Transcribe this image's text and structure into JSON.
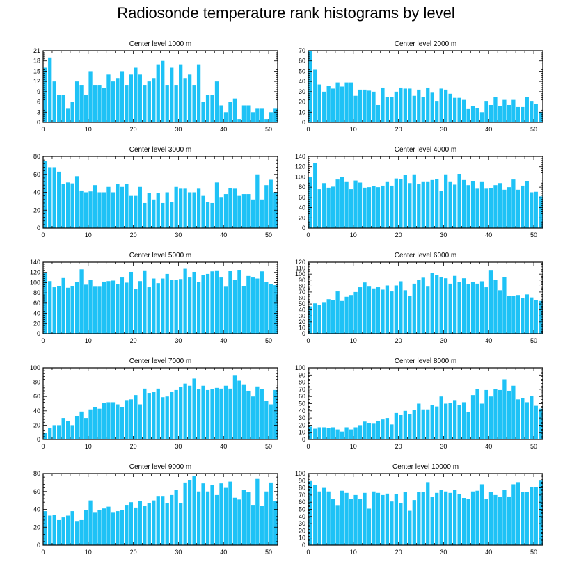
{
  "title": "Radiosonde temperature rank histograms by level",
  "bar_color": "#1ec2f6",
  "chart_data": [
    {
      "type": "bar",
      "title": "Center level 1000 m",
      "xlim": [
        0,
        52
      ],
      "ylim": [
        0,
        21
      ],
      "xticks": [
        0,
        10,
        20,
        30,
        40,
        50
      ],
      "yticks": [
        0,
        3,
        6,
        9,
        12,
        15,
        18,
        21
      ],
      "x": [
        0,
        1,
        2,
        3,
        4,
        5,
        6,
        7,
        8,
        9,
        10,
        11,
        12,
        13,
        14,
        15,
        16,
        17,
        18,
        19,
        20,
        21,
        22,
        23,
        24,
        25,
        26,
        27,
        28,
        29,
        30,
        31,
        32,
        33,
        34,
        35,
        36,
        37,
        38,
        39,
        40,
        41,
        42,
        43,
        44,
        45,
        46,
        47,
        48,
        49,
        50,
        51
      ],
      "values": [
        16,
        19,
        12,
        8,
        8,
        4,
        6,
        12,
        11,
        8,
        15,
        11,
        11,
        10,
        14,
        12,
        13,
        15,
        11,
        14,
        16,
        14,
        11,
        12,
        13,
        17,
        18,
        11,
        16,
        11,
        17,
        13,
        14,
        11,
        17,
        6,
        8,
        8,
        12,
        5,
        3,
        6,
        7,
        1,
        5,
        5,
        3,
        4,
        4,
        1,
        3,
        4
      ]
    },
    {
      "type": "bar",
      "title": "Center level 2000 m",
      "xlim": [
        0,
        52
      ],
      "ylim": [
        0,
        70
      ],
      "xticks": [
        0,
        10,
        20,
        30,
        40,
        50
      ],
      "yticks": [
        0,
        10,
        20,
        30,
        40,
        50,
        60,
        70
      ],
      "x": [
        0,
        1,
        2,
        3,
        4,
        5,
        6,
        7,
        8,
        9,
        10,
        11,
        12,
        13,
        14,
        15,
        16,
        17,
        18,
        19,
        20,
        21,
        22,
        23,
        24,
        25,
        26,
        27,
        28,
        29,
        30,
        31,
        32,
        33,
        34,
        35,
        36,
        37,
        38,
        39,
        40,
        41,
        42,
        43,
        44,
        45,
        46,
        47,
        48,
        49,
        50,
        51
      ],
      "values": [
        70,
        52,
        37,
        30,
        36,
        33,
        39,
        35,
        39,
        39,
        26,
        32,
        32,
        31,
        30,
        17,
        34,
        25,
        25,
        30,
        34,
        33,
        33,
        26,
        32,
        25,
        34,
        29,
        21,
        33,
        32,
        28,
        24,
        24,
        22,
        13,
        16,
        14,
        10,
        21,
        17,
        25,
        16,
        22,
        17,
        22,
        15,
        15,
        25,
        21,
        18,
        10
      ]
    },
    {
      "type": "bar",
      "title": "Center level 3000 m",
      "xlim": [
        0,
        52
      ],
      "ylim": [
        0,
        80
      ],
      "xticks": [
        0,
        10,
        20,
        30,
        40,
        50
      ],
      "yticks": [
        0,
        20,
        40,
        60,
        80
      ],
      "x": [
        0,
        1,
        2,
        3,
        4,
        5,
        6,
        7,
        8,
        9,
        10,
        11,
        12,
        13,
        14,
        15,
        16,
        17,
        18,
        19,
        20,
        21,
        22,
        23,
        24,
        25,
        26,
        27,
        28,
        29,
        30,
        31,
        32,
        33,
        34,
        35,
        36,
        37,
        38,
        39,
        40,
        41,
        42,
        43,
        44,
        45,
        46,
        47,
        48,
        49,
        50,
        51
      ],
      "values": [
        75,
        68,
        68,
        63,
        49,
        51,
        50,
        58,
        42,
        40,
        41,
        48,
        40,
        40,
        46,
        40,
        49,
        46,
        49,
        36,
        36,
        46,
        28,
        39,
        32,
        39,
        28,
        40,
        29,
        46,
        44,
        44,
        40,
        40,
        44,
        36,
        29,
        28,
        51,
        34,
        38,
        45,
        44,
        36,
        38,
        38,
        32,
        60,
        32,
        48,
        54,
        40
      ]
    },
    {
      "type": "bar",
      "title": "Center level 4000 m",
      "xlim": [
        0,
        52
      ],
      "ylim": [
        0,
        140
      ],
      "xticks": [
        0,
        10,
        20,
        30,
        40,
        50
      ],
      "yticks": [
        0,
        20,
        40,
        60,
        80,
        100,
        120,
        140
      ],
      "x": [
        0,
        1,
        2,
        3,
        4,
        5,
        6,
        7,
        8,
        9,
        10,
        11,
        12,
        13,
        14,
        15,
        16,
        17,
        18,
        19,
        20,
        21,
        22,
        23,
        24,
        25,
        26,
        27,
        28,
        29,
        30,
        31,
        32,
        33,
        34,
        35,
        36,
        37,
        38,
        39,
        40,
        41,
        42,
        43,
        44,
        45,
        46,
        47,
        48,
        49,
        50,
        51
      ],
      "values": [
        100,
        127,
        76,
        88,
        79,
        81,
        95,
        100,
        90,
        76,
        93,
        89,
        79,
        80,
        82,
        80,
        83,
        90,
        83,
        97,
        96,
        104,
        88,
        105,
        86,
        90,
        90,
        94,
        96,
        73,
        105,
        90,
        85,
        106,
        94,
        84,
        92,
        77,
        90,
        77,
        78,
        84,
        88,
        75,
        80,
        95,
        75,
        83,
        92,
        70,
        71,
        62
      ]
    },
    {
      "type": "bar",
      "title": "Center level 5000 m",
      "xlim": [
        0,
        52
      ],
      "ylim": [
        0,
        140
      ],
      "xticks": [
        0,
        10,
        20,
        30,
        40,
        50
      ],
      "yticks": [
        0,
        20,
        40,
        60,
        80,
        100,
        120,
        140
      ],
      "x": [
        0,
        1,
        2,
        3,
        4,
        5,
        6,
        7,
        8,
        9,
        10,
        11,
        12,
        13,
        14,
        15,
        16,
        17,
        18,
        19,
        20,
        21,
        22,
        23,
        24,
        25,
        26,
        27,
        28,
        29,
        30,
        31,
        32,
        33,
        34,
        35,
        36,
        37,
        38,
        39,
        40,
        41,
        42,
        43,
        44,
        45,
        46,
        47,
        48,
        49,
        50,
        51
      ],
      "values": [
        119,
        103,
        91,
        93,
        109,
        90,
        93,
        101,
        126,
        96,
        105,
        92,
        92,
        102,
        103,
        104,
        97,
        110,
        100,
        121,
        88,
        103,
        124,
        91,
        108,
        99,
        108,
        117,
        106,
        105,
        107,
        127,
        110,
        121,
        101,
        115,
        117,
        122,
        124,
        110,
        92,
        123,
        105,
        125,
        93,
        113,
        110,
        108,
        122,
        101,
        97,
        95
      ]
    },
    {
      "type": "bar",
      "title": "Center level 6000 m",
      "xlim": [
        0,
        52
      ],
      "ylim": [
        0,
        120
      ],
      "xticks": [
        0,
        10,
        20,
        30,
        40,
        50
      ],
      "yticks": [
        0,
        10,
        20,
        30,
        40,
        50,
        60,
        70,
        80,
        90,
        100,
        110,
        120
      ],
      "x": [
        0,
        1,
        2,
        3,
        4,
        5,
        6,
        7,
        8,
        9,
        10,
        11,
        12,
        13,
        14,
        15,
        16,
        17,
        18,
        19,
        20,
        21,
        22,
        23,
        24,
        25,
        26,
        27,
        28,
        29,
        30,
        31,
        32,
        33,
        34,
        35,
        36,
        37,
        38,
        39,
        40,
        41,
        42,
        43,
        44,
        45,
        46,
        47,
        48,
        49,
        50,
        51
      ],
      "values": [
        46,
        51,
        48,
        52,
        58,
        56,
        71,
        55,
        62,
        65,
        70,
        78,
        86,
        79,
        76,
        78,
        74,
        81,
        71,
        81,
        88,
        73,
        64,
        84,
        90,
        94,
        79,
        102,
        99,
        95,
        93,
        84,
        97,
        87,
        93,
        83,
        87,
        84,
        88,
        78,
        107,
        90,
        73,
        95,
        63,
        63,
        65,
        60,
        66,
        61,
        56,
        55
      ]
    },
    {
      "type": "bar",
      "title": "Center level 7000 m",
      "xlim": [
        0,
        52
      ],
      "ylim": [
        0,
        100
      ],
      "xticks": [
        0,
        10,
        20,
        30,
        40,
        50
      ],
      "yticks": [
        0,
        20,
        40,
        60,
        80,
        100
      ],
      "x": [
        0,
        1,
        2,
        3,
        4,
        5,
        6,
        7,
        8,
        9,
        10,
        11,
        12,
        13,
        14,
        15,
        16,
        17,
        18,
        19,
        20,
        21,
        22,
        23,
        24,
        25,
        26,
        27,
        28,
        29,
        30,
        31,
        32,
        33,
        34,
        35,
        36,
        37,
        38,
        39,
        40,
        41,
        42,
        43,
        44,
        45,
        46,
        47,
        48,
        49,
        50,
        51
      ],
      "values": [
        9,
        16,
        20,
        20,
        30,
        26,
        20,
        33,
        39,
        30,
        42,
        45,
        43,
        51,
        52,
        52,
        49,
        45,
        55,
        56,
        62,
        49,
        71,
        65,
        66,
        71,
        59,
        60,
        67,
        69,
        73,
        78,
        75,
        85,
        70,
        75,
        69,
        70,
        72,
        71,
        75,
        71,
        90,
        82,
        77,
        68,
        60,
        74,
        70,
        54,
        49,
        69
      ]
    },
    {
      "type": "bar",
      "title": "Center level 8000 m",
      "xlim": [
        0,
        52
      ],
      "ylim": [
        0,
        100
      ],
      "xticks": [
        0,
        10,
        20,
        30,
        40,
        50
      ],
      "yticks": [
        0,
        10,
        20,
        30,
        40,
        50,
        60,
        70,
        80,
        90,
        100
      ],
      "x": [
        0,
        1,
        2,
        3,
        4,
        5,
        6,
        7,
        8,
        9,
        10,
        11,
        12,
        13,
        14,
        15,
        16,
        17,
        18,
        19,
        20,
        21,
        22,
        23,
        24,
        25,
        26,
        27,
        28,
        29,
        30,
        31,
        32,
        33,
        34,
        35,
        36,
        37,
        38,
        39,
        40,
        41,
        42,
        43,
        44,
        45,
        46,
        47,
        48,
        49,
        50,
        51
      ],
      "values": [
        18,
        15,
        17,
        17,
        16,
        17,
        14,
        11,
        17,
        14,
        17,
        20,
        25,
        23,
        22,
        26,
        28,
        30,
        21,
        37,
        34,
        40,
        35,
        41,
        50,
        42,
        42,
        48,
        46,
        60,
        50,
        51,
        55,
        48,
        52,
        38,
        62,
        70,
        50,
        69,
        60,
        70,
        69,
        84,
        68,
        75,
        56,
        58,
        52,
        61,
        47,
        43
      ]
    },
    {
      "type": "bar",
      "title": "Center level 9000 m",
      "xlim": [
        0,
        52
      ],
      "ylim": [
        0,
        80
      ],
      "xticks": [
        0,
        10,
        20,
        30,
        40,
        50
      ],
      "yticks": [
        0,
        20,
        40,
        60,
        80
      ],
      "x": [
        0,
        1,
        2,
        3,
        4,
        5,
        6,
        7,
        8,
        9,
        10,
        11,
        12,
        13,
        14,
        15,
        16,
        17,
        18,
        19,
        20,
        21,
        22,
        23,
        24,
        25,
        26,
        27,
        28,
        29,
        30,
        31,
        32,
        33,
        34,
        35,
        36,
        37,
        38,
        39,
        40,
        41,
        42,
        43,
        44,
        45,
        46,
        47,
        48,
        49,
        50,
        51
      ],
      "values": [
        38,
        33,
        34,
        28,
        31,
        33,
        38,
        27,
        28,
        39,
        50,
        37,
        39,
        41,
        43,
        37,
        38,
        39,
        45,
        48,
        42,
        49,
        44,
        47,
        50,
        55,
        55,
        47,
        56,
        62,
        47,
        70,
        73,
        77,
        60,
        69,
        60,
        67,
        56,
        69,
        64,
        71,
        53,
        51,
        62,
        59,
        45,
        74,
        44,
        60,
        70,
        49
      ]
    },
    {
      "type": "bar",
      "title": "Center level 10000 m",
      "xlim": [
        0,
        52
      ],
      "ylim": [
        0,
        100
      ],
      "xticks": [
        0,
        10,
        20,
        30,
        40,
        50
      ],
      "yticks": [
        0,
        10,
        20,
        30,
        40,
        50,
        60,
        70,
        80,
        90,
        100
      ],
      "x": [
        0,
        1,
        2,
        3,
        4,
        5,
        6,
        7,
        8,
        9,
        10,
        11,
        12,
        13,
        14,
        15,
        16,
        17,
        18,
        19,
        20,
        21,
        22,
        23,
        24,
        25,
        26,
        27,
        28,
        29,
        30,
        31,
        32,
        33,
        34,
        35,
        36,
        37,
        38,
        39,
        40,
        41,
        42,
        43,
        44,
        45,
        46,
        47,
        48,
        49,
        50,
        51
      ],
      "values": [
        90,
        84,
        75,
        80,
        75,
        65,
        56,
        76,
        73,
        65,
        70,
        65,
        73,
        51,
        75,
        73,
        70,
        72,
        61,
        71,
        59,
        74,
        48,
        63,
        74,
        74,
        88,
        67,
        73,
        77,
        75,
        73,
        77,
        71,
        66,
        65,
        75,
        76,
        85,
        65,
        74,
        70,
        67,
        77,
        68,
        85,
        88,
        74,
        74,
        81,
        81,
        91
      ]
    }
  ]
}
